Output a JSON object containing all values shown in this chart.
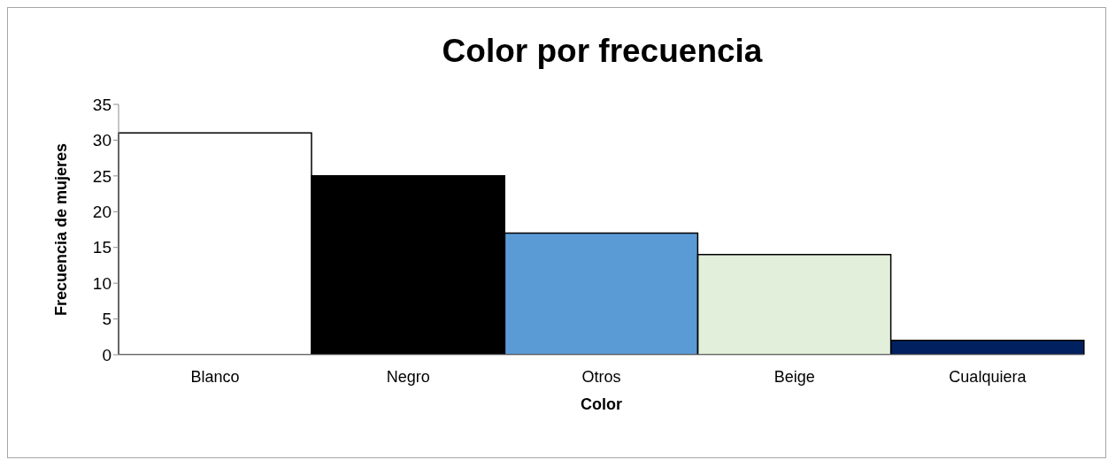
{
  "chart_data": {
    "type": "bar",
    "title": "Color por frecuencia",
    "xlabel": "Color",
    "ylabel": "Frecuencia de mujeres",
    "categories": [
      "Blanco",
      "Negro",
      "Otros",
      "Beige",
      "Cualquiera"
    ],
    "values": [
      31,
      25,
      17,
      14,
      2
    ],
    "colors": [
      "#ffffff",
      "#000000",
      "#5b9bd5",
      "#e2efda",
      "#002060"
    ],
    "ylim": [
      0,
      35
    ],
    "yticks": [
      0,
      5,
      10,
      15,
      20,
      25,
      30,
      35
    ],
    "grid": false,
    "legend": false
  }
}
